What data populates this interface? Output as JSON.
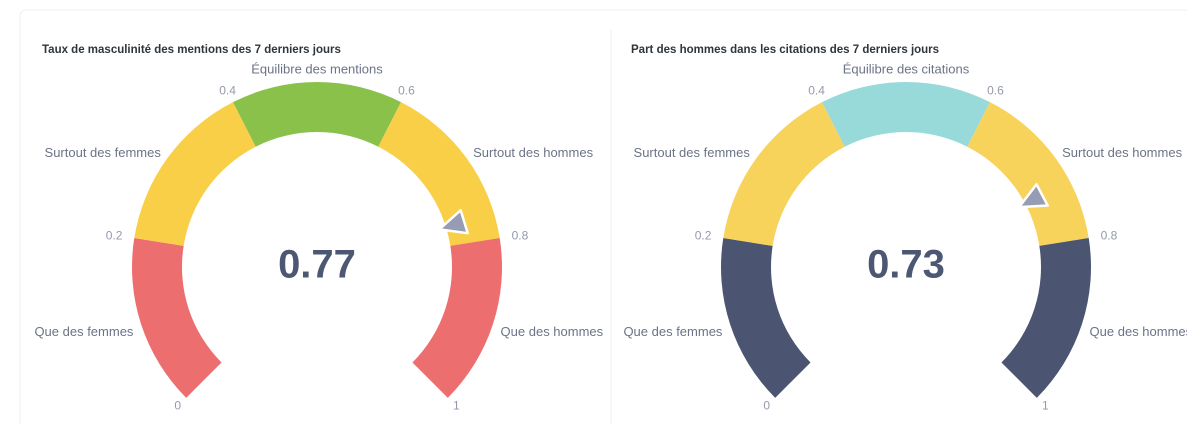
{
  "chart_data": [
    {
      "type": "gauge",
      "title": "Taux de masculinité des mentions des 7 derniers jours",
      "value": 0.77,
      "range": [
        0,
        1
      ],
      "ticks": [
        0,
        0.2,
        0.4,
        0.6,
        0.8,
        1
      ],
      "segments": [
        {
          "from": 0,
          "to": 0.2,
          "color": "#ed6e6e",
          "label": "Que des femmes"
        },
        {
          "from": 0.2,
          "to": 0.4,
          "color": "#f9cf48",
          "label": "Surtout des femmes"
        },
        {
          "from": 0.4,
          "to": 0.6,
          "color": "#89c14a",
          "label": "Équilibre des mentions"
        },
        {
          "from": 0.6,
          "to": 0.8,
          "color": "#f9cf48",
          "label": "Surtout des hommes"
        },
        {
          "from": 0.8,
          "to": 1,
          "color": "#ed6e6e",
          "label": "Que des hommes"
        }
      ]
    },
    {
      "type": "gauge",
      "title": "Part des hommes dans les citations des 7 derniers jours",
      "value": 0.73,
      "range": [
        0,
        1
      ],
      "ticks": [
        0,
        0.2,
        0.4,
        0.6,
        0.8,
        1
      ],
      "segments": [
        {
          "from": 0,
          "to": 0.2,
          "color": "#4b5571",
          "label": "Que des femmes"
        },
        {
          "from": 0.2,
          "to": 0.4,
          "color": "#f7d35c",
          "label": "Surtout des femmes"
        },
        {
          "from": 0.4,
          "to": 0.6,
          "color": "#98d9d9",
          "label": "Équilibre des citations"
        },
        {
          "from": 0.6,
          "to": 0.8,
          "color": "#f7d35c",
          "label": "Surtout des hommes"
        },
        {
          "from": 0.8,
          "to": 1,
          "color": "#4b5571",
          "label": "Que des hommes"
        }
      ]
    }
  ]
}
